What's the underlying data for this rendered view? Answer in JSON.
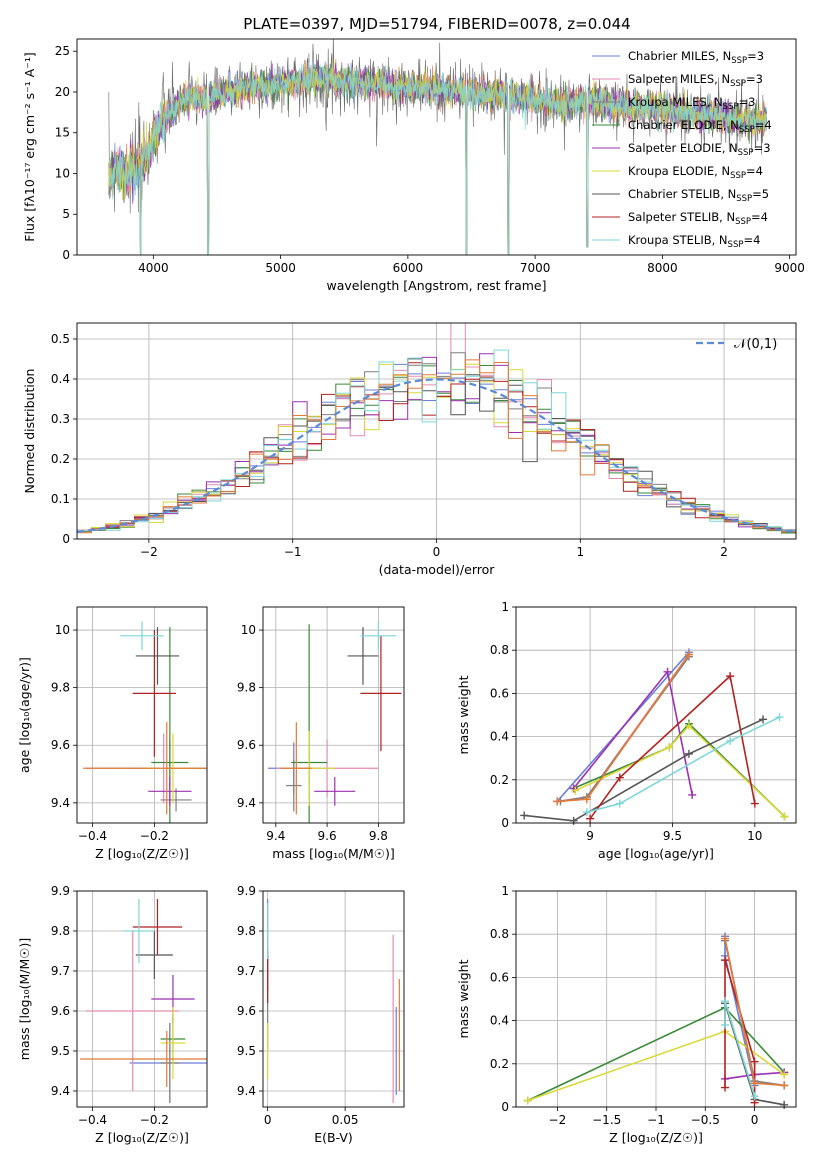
{
  "figure_title": "PLATE=0397, MJD=51794, FIBERID=0078, z=0.044",
  "colors": [
    "#6b7fd6",
    "#e58ab4",
    "#7f7f7f",
    "#3a8a3a",
    "#9b30b0",
    "#d9d93a",
    "#555555",
    "#b22222",
    "#7fd6d6",
    "#e07b39"
  ],
  "chart_data": [
    {
      "id": "spectrum",
      "type": "line",
      "xlabel": "wavelength [Angstrom, rest frame]",
      "ylabel": "Flux [fλ10⁻¹⁷ erg cm⁻² s⁻¹ A⁻¹]",
      "xlim": [
        3400,
        9050
      ],
      "ylim": [
        0,
        26.5
      ],
      "xticks": [
        4000,
        5000,
        6000,
        7000,
        8000,
        9000
      ],
      "yticks": [
        0,
        5,
        10,
        15,
        20,
        25
      ],
      "legend_position": "top-right",
      "series": [
        {
          "name": "Chabrier MILES, N_SSP=3",
          "color_index": 0
        },
        {
          "name": "Salpeter MILES, N_SSP=3",
          "color_index": 1
        },
        {
          "name": "Kroupa MILES, N_SSP=3",
          "color_index": 2
        },
        {
          "name": "Chabrier ELODIE, N_SSP=4",
          "color_index": 3
        },
        {
          "name": "Salpeter ELODIE, N_SSP=3",
          "color_index": 4
        },
        {
          "name": "Kroupa ELODIE, N_SSP=4",
          "color_index": 5
        },
        {
          "name": "Chabrier STELIB, N_SSP=5",
          "color_index": 6
        },
        {
          "name": "Salpeter STELIB, N_SSP=4",
          "color_index": 7
        },
        {
          "name": "Kroupa STELIB, N_SSP=4",
          "color_index": 8
        }
      ],
      "continuum": {
        "x": [
          3650,
          3700,
          3800,
          3900,
          3950,
          4000,
          4100,
          4200,
          4300,
          4400,
          4500,
          4600,
          4700,
          4800,
          4900,
          5000,
          5200,
          5400,
          5600,
          5800,
          6000,
          6200,
          6400,
          6600,
          6800,
          7000,
          7200,
          7400,
          7600,
          7800,
          8000,
          8200,
          8400,
          8600,
          8820
        ],
        "y": [
          9.5,
          11,
          10,
          11,
          12,
          14.5,
          17,
          18.5,
          19.5,
          19,
          19.5,
          20,
          20.5,
          21,
          20.5,
          21,
          21.5,
          21.5,
          21,
          21,
          20.5,
          20.5,
          20,
          20,
          19.5,
          19,
          18.5,
          19,
          18.5,
          18,
          18,
          17.5,
          17,
          16.5,
          16.5
        ]
      },
      "dips": [
        [
          3900,
          0
        ],
        [
          4430,
          0
        ],
        [
          6460,
          0
        ],
        [
          6790,
          0
        ],
        [
          7410,
          1
        ]
      ]
    },
    {
      "id": "residual_hist",
      "type": "line",
      "xlabel": "(data-model)/error",
      "ylabel": "Normed distribution",
      "xlim": [
        -2.5,
        2.5
      ],
      "ylim": [
        0,
        0.54
      ],
      "xticks": [
        -2,
        -1,
        0,
        1,
        2
      ],
      "yticks": [
        0.0,
        0.1,
        0.2,
        0.3,
        0.4,
        0.5
      ],
      "legend_position": "top-right",
      "legend": [
        "𝒩(0,1)"
      ],
      "bin_width": 0.1,
      "grid": true
    },
    {
      "id": "age_vs_Z",
      "type": "scatter",
      "xlabel": "Z [log₁₀(Z/Z☉)]",
      "ylabel": "age  [log₁₀(age/yr)]",
      "xlim": [
        -0.45,
        -0.03
      ],
      "ylim": [
        9.33,
        10.08
      ],
      "xticks": [
        -0.4,
        -0.2
      ],
      "yticks": [
        9.4,
        9.6,
        9.8,
        10.0
      ],
      "grid": true,
      "points": [
        {
          "x": -0.15,
          "y": 9.52,
          "xerr": 0.15,
          "yerr": 0.1,
          "c": 0
        },
        {
          "x": -0.17,
          "y": 9.52,
          "xerr": 0.25,
          "yerr": 0.12,
          "c": 1
        },
        {
          "x": -0.13,
          "y": 9.41,
          "xerr": 0.05,
          "yerr": 0.04,
          "c": 2
        },
        {
          "x": -0.15,
          "y": 9.54,
          "xerr": 0.06,
          "yerr": 0.47,
          "c": 3
        },
        {
          "x": -0.15,
          "y": 9.44,
          "xerr": 0.07,
          "yerr": 0.05,
          "c": 4
        },
        {
          "x": -0.14,
          "y": 9.52,
          "xerr": 0.1,
          "yerr": 0.12,
          "c": 5
        },
        {
          "x": -0.19,
          "y": 9.91,
          "xerr": 0.07,
          "yerr": 0.1,
          "c": 6
        },
        {
          "x": -0.2,
          "y": 9.78,
          "xerr": 0.07,
          "yerr": 0.22,
          "c": 7
        },
        {
          "x": -0.24,
          "y": 9.98,
          "xerr": 0.07,
          "yerr": 0.05,
          "c": 8
        },
        {
          "x": -0.16,
          "y": 9.52,
          "xerr": 0.27,
          "yerr": 0.16,
          "c": 9
        }
      ]
    },
    {
      "id": "age_vs_mass",
      "type": "scatter",
      "xlabel": "mass [log₁₀(M/M☉)]",
      "ylabel": "",
      "xlim": [
        9.35,
        9.9
      ],
      "ylim": [
        9.33,
        10.08
      ],
      "xticks": [
        9.4,
        9.6,
        9.8
      ],
      "yticks": [
        9.4,
        9.6,
        9.8,
        10.0
      ],
      "grid": true,
      "points": [
        {
          "x": 9.47,
          "y": 9.52,
          "xerr": 0.1,
          "yerr": 0.09,
          "c": 0
        },
        {
          "x": 9.6,
          "y": 9.52,
          "xerr": 0.2,
          "yerr": 0.1,
          "c": 1
        },
        {
          "x": 9.47,
          "y": 9.46,
          "xerr": 0.03,
          "yerr": 0.09,
          "c": 2
        },
        {
          "x": 9.53,
          "y": 9.54,
          "xerr": 0.07,
          "yerr": 0.48,
          "c": 3
        },
        {
          "x": 9.63,
          "y": 9.44,
          "xerr": 0.08,
          "yerr": 0.05,
          "c": 4
        },
        {
          "x": 9.53,
          "y": 9.52,
          "xerr": 0.1,
          "yerr": 0.13,
          "c": 5
        },
        {
          "x": 9.74,
          "y": 9.91,
          "xerr": 0.06,
          "yerr": 0.1,
          "c": 6
        },
        {
          "x": 9.81,
          "y": 9.78,
          "xerr": 0.08,
          "yerr": 0.2,
          "c": 7
        },
        {
          "x": 9.8,
          "y": 9.98,
          "xerr": 0.07,
          "yerr": 0.05,
          "c": 8
        },
        {
          "x": 9.48,
          "y": 9.52,
          "xerr": 0.06,
          "yerr": 0.16,
          "c": 9
        }
      ]
    },
    {
      "id": "massweight_vs_age",
      "type": "line",
      "xlabel": "age  [log₁₀(age/yr)]",
      "ylabel": "mass weight",
      "xlim": [
        8.55,
        10.25
      ],
      "ylim": [
        0.0,
        1.0
      ],
      "xticks": [
        9.0,
        9.5,
        10.0
      ],
      "yticks": [
        0.0,
        0.2,
        0.4,
        0.6,
        0.8,
        1.0
      ],
      "grid": true,
      "series": [
        {
          "c": 0,
          "x": [
            8.8,
            9.6
          ],
          "y": [
            0.1,
            0.79
          ]
        },
        {
          "c": 1,
          "x": [
            8.8,
            8.98,
            9.6
          ],
          "y": [
            0.1,
            0.12,
            0.78
          ]
        },
        {
          "c": 2,
          "x": [
            8.82,
            8.98,
            9.6
          ],
          "y": [
            0.1,
            0.12,
            0.77
          ]
        },
        {
          "c": 3,
          "x": [
            8.9,
            9.48,
            9.6,
            10.18
          ],
          "y": [
            0.16,
            0.35,
            0.46,
            0.03
          ]
        },
        {
          "c": 4,
          "x": [
            8.9,
            9.47,
            9.62
          ],
          "y": [
            0.16,
            0.7,
            0.13
          ]
        },
        {
          "c": 5,
          "x": [
            8.91,
            9.48,
            9.6,
            10.18
          ],
          "y": [
            0.15,
            0.35,
            0.45,
            0.03
          ]
        },
        {
          "c": 6,
          "x": [
            8.6,
            8.9,
            9.6,
            10.05
          ],
          "y": [
            0.035,
            0.01,
            0.32,
            0.48
          ]
        },
        {
          "c": 7,
          "x": [
            9.0,
            9.18,
            9.85,
            10.0
          ],
          "y": [
            0.02,
            0.21,
            0.68,
            0.09
          ]
        },
        {
          "c": 8,
          "x": [
            8.98,
            9.18,
            9.85,
            10.15
          ],
          "y": [
            0.05,
            0.09,
            0.38,
            0.49
          ]
        },
        {
          "c": 9,
          "x": [
            8.8,
            8.98,
            9.6
          ],
          "y": [
            0.1,
            0.11,
            0.78
          ]
        }
      ]
    },
    {
      "id": "mass_vs_Z",
      "type": "scatter",
      "xlabel": "Z [log₁₀(Z/Z☉)]",
      "ylabel": "mass [log₁₀(M/M☉)]",
      "xlim": [
        -0.45,
        -0.03
      ],
      "ylim": [
        9.36,
        9.9
      ],
      "xticks": [
        -0.4,
        -0.2
      ],
      "yticks": [
        9.4,
        9.5,
        9.6,
        9.7,
        9.8,
        9.9
      ],
      "grid": true,
      "points": [
        {
          "x": -0.15,
          "y": 9.47,
          "xerr": 0.13,
          "yerr": 0.1,
          "c": 0
        },
        {
          "x": -0.27,
          "y": 9.6,
          "xerr": 0.15,
          "yerr": 0.2,
          "c": 1
        },
        {
          "x": -0.15,
          "y": 9.47,
          "xerr": 0.03,
          "yerr": 0.1,
          "c": 2
        },
        {
          "x": -0.14,
          "y": 9.53,
          "xerr": 0.04,
          "yerr": 0.06,
          "c": 3
        },
        {
          "x": -0.14,
          "y": 9.63,
          "xerr": 0.07,
          "yerr": 0.06,
          "c": 4
        },
        {
          "x": -0.14,
          "y": 9.52,
          "xerr": 0.04,
          "yerr": 0.09,
          "c": 5
        },
        {
          "x": -0.2,
          "y": 9.74,
          "xerr": 0.06,
          "yerr": 0.06,
          "c": 6
        },
        {
          "x": -0.19,
          "y": 9.81,
          "xerr": 0.08,
          "yerr": 0.07,
          "c": 7
        },
        {
          "x": -0.25,
          "y": 9.8,
          "xerr": 0.05,
          "yerr": 0.08,
          "c": 8
        },
        {
          "x": -0.16,
          "y": 9.48,
          "xerr": 0.28,
          "yerr": 0.07,
          "c": 9
        }
      ]
    },
    {
      "id": "mass_vs_ebv",
      "type": "scatter",
      "xlabel": "E(B-V)",
      "ylabel": "",
      "xlim": [
        -0.003,
        0.088
      ],
      "ylim": [
        9.36,
        9.9
      ],
      "xticks": [
        0.0,
        0.05
      ],
      "yticks": [
        9.4,
        9.5,
        9.6,
        9.7,
        9.8,
        9.9
      ],
      "grid": true,
      "points": [
        {
          "x": 0.0,
          "y": 9.8,
          "xerr": 0,
          "yerr": 0.08,
          "c": 0
        },
        {
          "x": 0.0,
          "y": 9.6,
          "xerr": 0,
          "yerr": 0.1,
          "c": 2
        },
        {
          "x": 0.0,
          "y": 9.7,
          "xerr": 0,
          "yerr": 0.05,
          "c": 4
        },
        {
          "x": 0.0,
          "y": 9.5,
          "xerr": 0,
          "yerr": 0.07,
          "c": 5
        },
        {
          "x": 0.0,
          "y": 9.68,
          "xerr": 0,
          "yerr": 0.06,
          "c": 7
        },
        {
          "x": 0.0,
          "y": 9.8,
          "xerr": 0,
          "yerr": 0.07,
          "c": 8
        },
        {
          "x": 0.081,
          "y": 9.58,
          "xerr": 0,
          "yerr": 0.21,
          "c": 1
        },
        {
          "x": 0.083,
          "y": 9.5,
          "xerr": 0,
          "yerr": 0.11,
          "c": 0
        },
        {
          "x": 0.085,
          "y": 9.54,
          "xerr": 0,
          "yerr": 0.14,
          "c": 9
        }
      ]
    },
    {
      "id": "massweight_vs_Z",
      "type": "line",
      "xlabel": "Z [log₁₀(Z/Z☉)]",
      "ylabel": "mass weight",
      "xlim": [
        -2.42,
        0.42
      ],
      "ylim": [
        0.0,
        1.0
      ],
      "xticks": [
        -2.0,
        -1.5,
        -1.0,
        -0.5,
        0.0
      ],
      "yticks": [
        0.0,
        0.2,
        0.4,
        0.6,
        0.8,
        1.0
      ],
      "grid": true,
      "series": [
        {
          "c": 0,
          "x": [
            -0.3,
            -0.3,
            0.0
          ],
          "y": [
            0.79,
            0.7,
            0.1
          ]
        },
        {
          "c": 1,
          "x": [
            -0.3,
            0.0,
            0.3
          ],
          "y": [
            0.78,
            0.12,
            0.1
          ]
        },
        {
          "c": 2,
          "x": [
            -0.3,
            0.0,
            0.3
          ],
          "y": [
            0.77,
            0.12,
            0.1
          ]
        },
        {
          "c": 3,
          "x": [
            -2.3,
            -0.3,
            0.3
          ],
          "y": [
            0.03,
            0.46,
            0.16
          ]
        },
        {
          "c": 4,
          "x": [
            -0.3,
            0.0,
            0.3
          ],
          "y": [
            0.13,
            0.15,
            0.16
          ]
        },
        {
          "c": 5,
          "x": [
            -2.3,
            -0.3,
            0.3
          ],
          "y": [
            0.03,
            0.35,
            0.15
          ]
        },
        {
          "c": 6,
          "x": [
            -0.3,
            0.0,
            0.3
          ],
          "y": [
            0.48,
            0.035,
            0.01
          ]
        },
        {
          "c": 7,
          "x": [
            -0.3,
            -0.3,
            0.0,
            0.0
          ],
          "y": [
            0.09,
            0.68,
            0.21,
            0.02
          ]
        },
        {
          "c": 8,
          "x": [
            -0.3,
            -0.3,
            0.0
          ],
          "y": [
            0.38,
            0.49,
            0.05
          ]
        },
        {
          "c": 9,
          "x": [
            -0.3,
            0.0,
            0.3
          ],
          "y": [
            0.78,
            0.11,
            0.1
          ]
        }
      ]
    }
  ]
}
